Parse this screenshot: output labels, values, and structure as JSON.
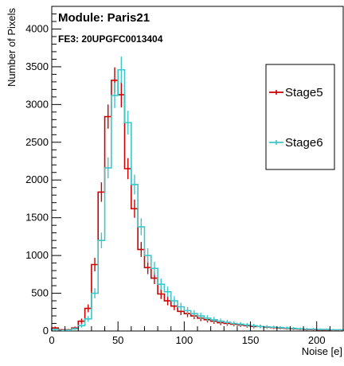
{
  "chart_data": {
    "type": "histogram-step",
    "title_line1": "Module: Paris21",
    "title_line2": "FE3: 20UPGFC0013404",
    "xlabel": "Noise [e]",
    "ylabel": "Number of Pixels",
    "xlim": [
      0,
      220
    ],
    "ylim": [
      0,
      4300
    ],
    "xticks": [
      0,
      50,
      100,
      150,
      200
    ],
    "yticks": [
      0,
      500,
      1000,
      1500,
      2000,
      2500,
      3000,
      3500,
      4000
    ],
    "bin_width": 5,
    "grid": false,
    "legend_placement": "right",
    "series": [
      {
        "name": "Stage5",
        "color": "#cc0000",
        "values": [
          40,
          15,
          15,
          40,
          130,
          300,
          880,
          1840,
          2840,
          3320,
          3130,
          2150,
          1620,
          1080,
          840,
          700,
          490,
          400,
          330,
          260,
          230,
          200,
          170,
          150,
          130,
          110,
          100,
          90,
          80,
          70,
          60,
          60,
          50,
          45,
          40,
          35,
          30,
          25,
          20,
          20,
          15,
          15,
          10,
          10
        ]
      },
      {
        "name": "Stage6",
        "color": "#3fc6c8",
        "values": [
          20,
          8,
          10,
          30,
          70,
          160,
          500,
          1200,
          2160,
          3120,
          3460,
          2760,
          1940,
          1380,
          1000,
          830,
          620,
          520,
          400,
          320,
          270,
          230,
          200,
          170,
          150,
          130,
          115,
          100,
          90,
          80,
          70,
          60,
          55,
          50,
          45,
          40,
          35,
          30,
          25,
          25,
          20,
          20,
          15,
          15
        ]
      }
    ]
  }
}
